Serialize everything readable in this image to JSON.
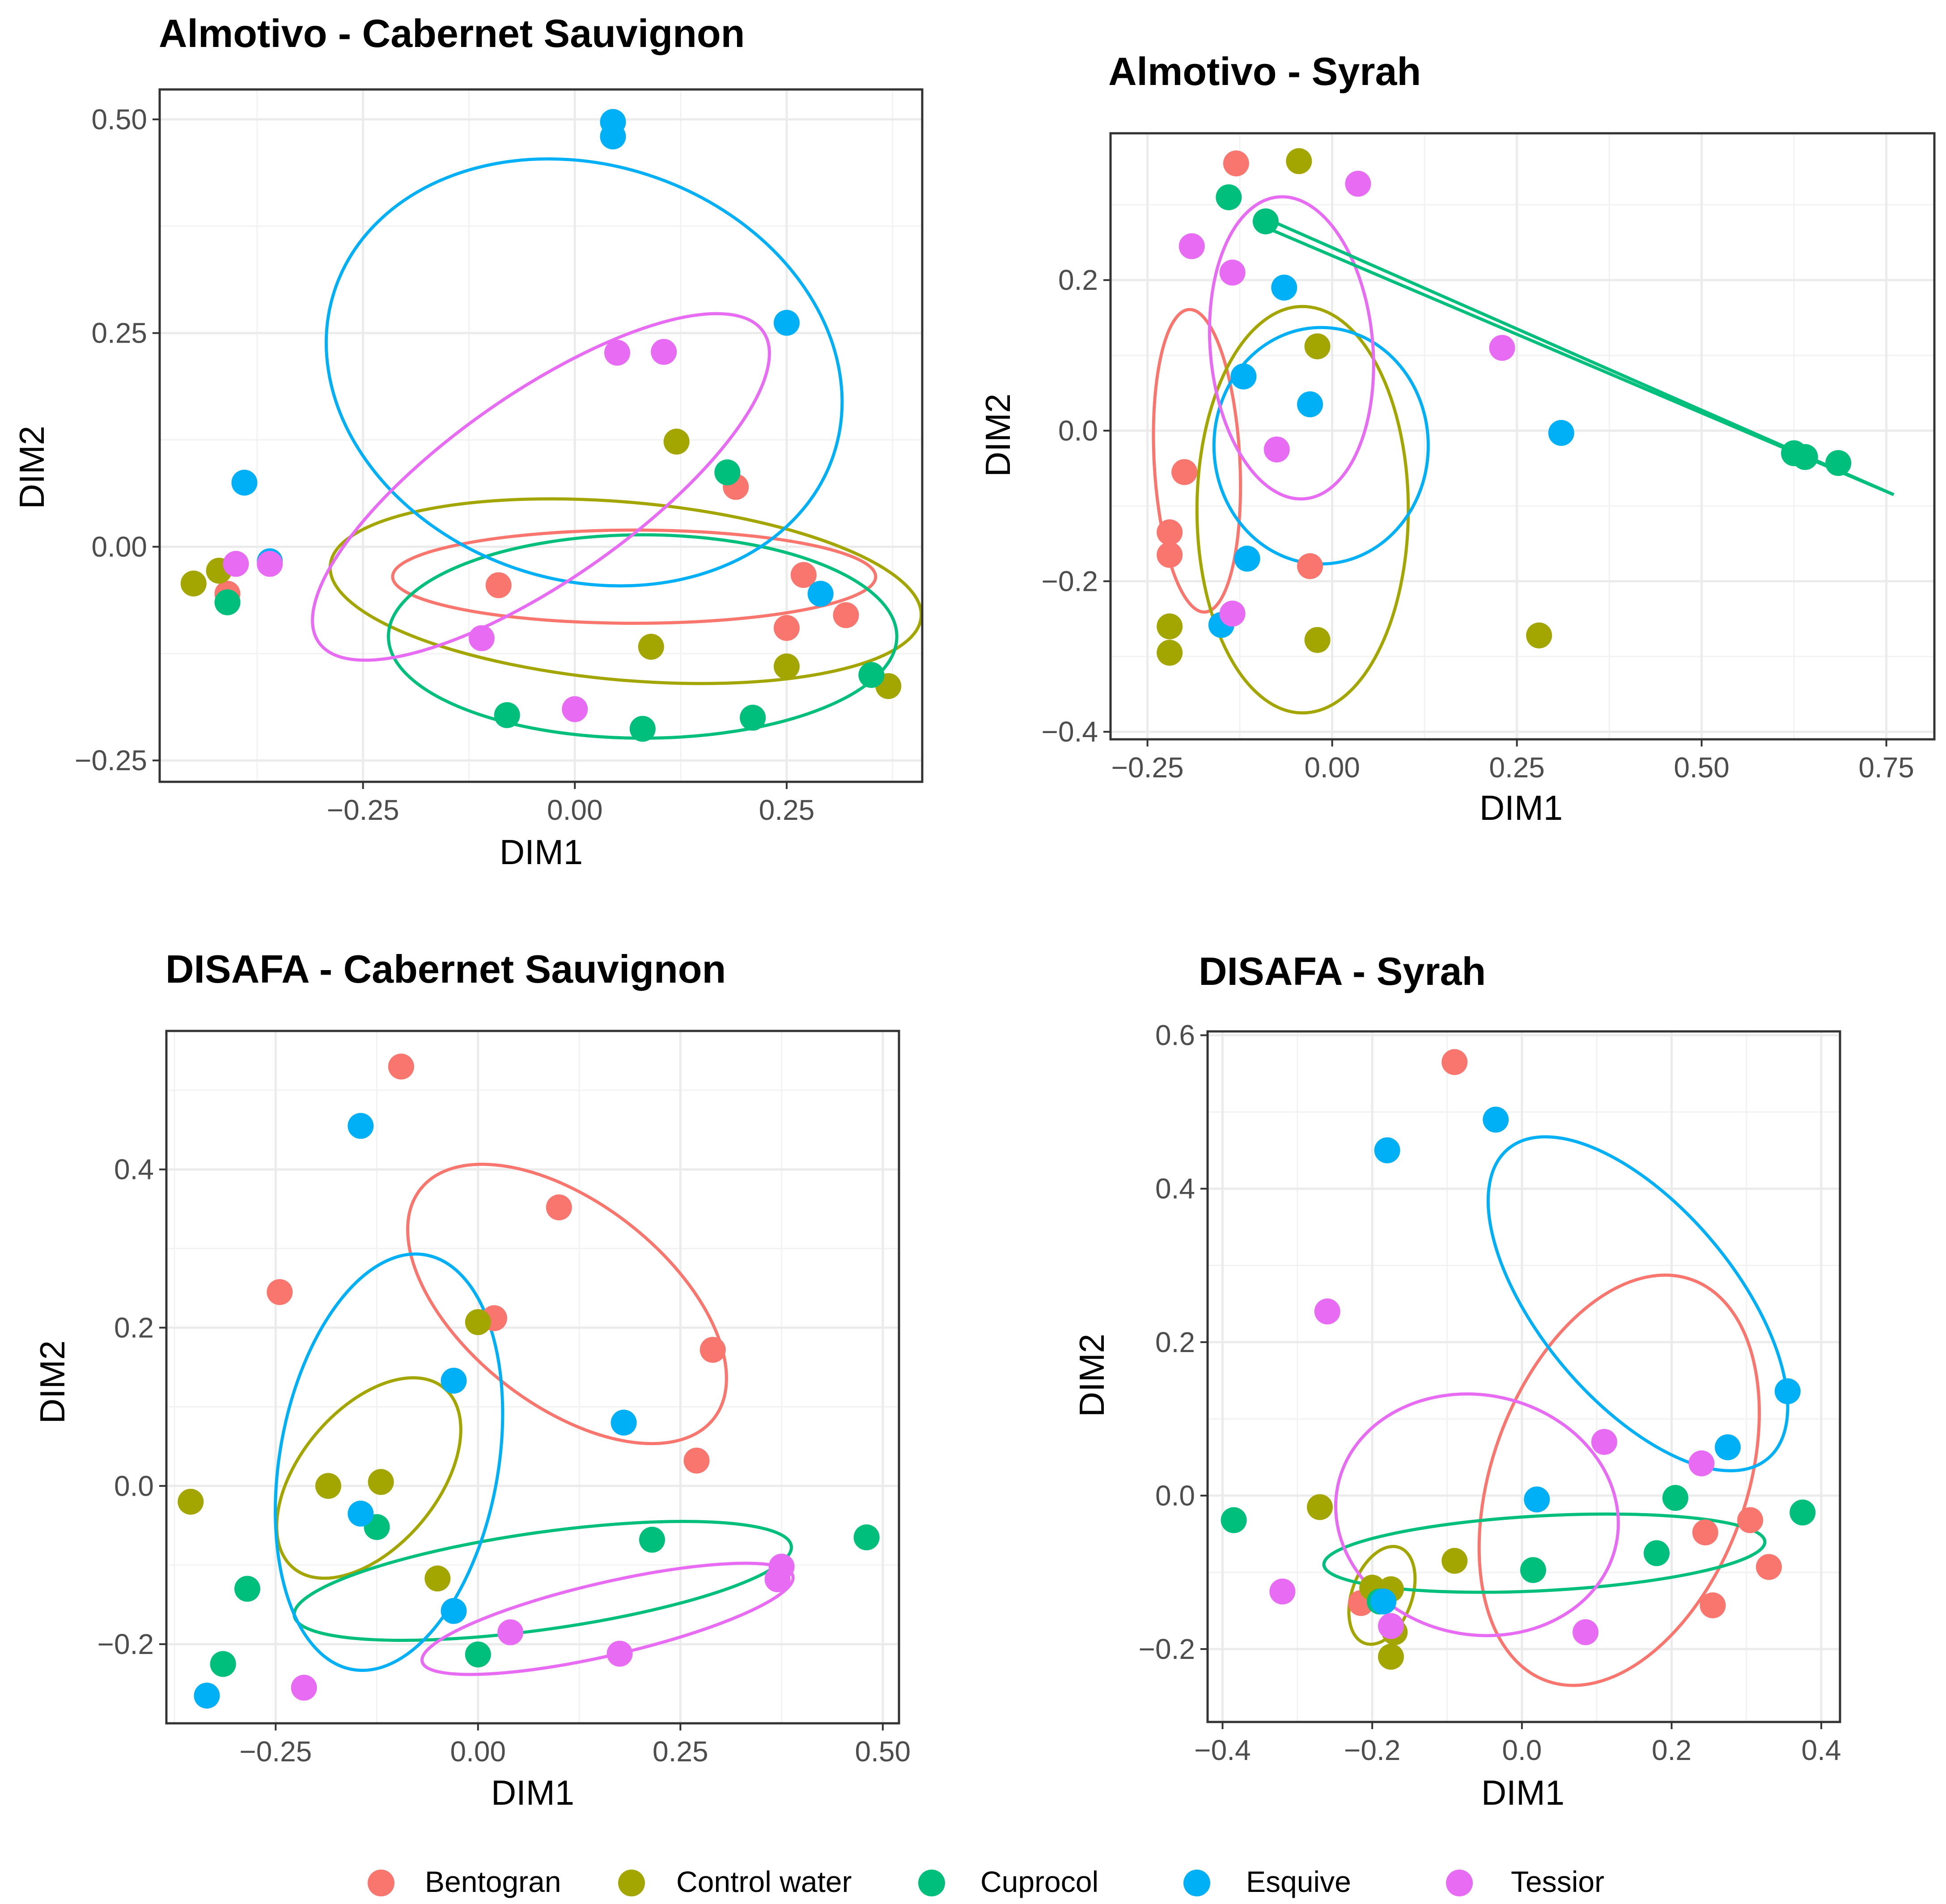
{
  "figure": {
    "series_colors": {
      "Bentogran": "#F8766D",
      "Control water": "#A3A500",
      "Cuprocol": "#00BF7D",
      "Esquive": "#00B0F6",
      "Tessior": "#E76BF3"
    }
  },
  "legend": {
    "items": [
      {
        "label": "Bentogran",
        "color": "#F8766D"
      },
      {
        "label": "Control water",
        "color": "#A3A500"
      },
      {
        "label": "Cuprocol",
        "color": "#00BF7D"
      },
      {
        "label": "Esquive",
        "color": "#00B0F6"
      },
      {
        "label": "Tessior",
        "color": "#E76BF3"
      }
    ]
  },
  "chart_data": [
    {
      "type": "scatter",
      "title": "Almotivo - Cabernet Sauvignon",
      "xlabel": "DIM1",
      "ylabel": "DIM2",
      "xlim": [
        -0.49,
        0.41
      ],
      "ylim": [
        -0.275,
        0.535
      ],
      "xticks": [
        {
          "value": -0.25,
          "label": "−0.25"
        },
        {
          "value": 0.0,
          "label": "0.00"
        },
        {
          "value": 0.25,
          "label": "0.25"
        }
      ],
      "yticks": [
        {
          "value": -0.25,
          "label": "−0.25"
        },
        {
          "value": 0.0,
          "label": "0.00"
        },
        {
          "value": 0.25,
          "label": "0.25"
        },
        {
          "value": 0.5,
          "label": "0.50"
        }
      ],
      "series": [
        {
          "name": "Bentogran",
          "points": [
            [
              -0.41,
              -0.055
            ],
            [
              -0.09,
              -0.045
            ],
            [
              0.19,
              0.07
            ],
            [
              0.25,
              -0.095
            ],
            [
              0.27,
              -0.033
            ],
            [
              0.32,
              -0.08
            ]
          ],
          "ellipse": {
            "cx": 0.07,
            "cy": -0.035,
            "rx": 0.285,
            "ry": 0.055,
            "angle_deg": 0
          }
        },
        {
          "name": "Control water",
          "points": [
            [
              -0.45,
              -0.043
            ],
            [
              -0.42,
              -0.028
            ],
            [
              0.09,
              -0.117
            ],
            [
              0.12,
              0.123
            ],
            [
              0.25,
              -0.14
            ],
            [
              0.37,
              -0.163
            ]
          ],
          "ellipse": {
            "cx": 0.06,
            "cy": -0.052,
            "rx": 0.35,
            "ry": 0.105,
            "angle_deg": -5
          }
        },
        {
          "name": "Cuprocol",
          "points": [
            [
              -0.41,
              -0.065
            ],
            [
              -0.08,
              -0.197
            ],
            [
              0.08,
              -0.213
            ],
            [
              0.18,
              0.087
            ],
            [
              0.21,
              -0.2
            ],
            [
              0.35,
              -0.15
            ]
          ],
          "ellipse": {
            "cx": 0.08,
            "cy": -0.105,
            "rx": 0.3,
            "ry": 0.12,
            "angle_deg": 0
          }
        },
        {
          "name": "Esquive",
          "points": [
            [
              -0.39,
              0.075
            ],
            [
              -0.36,
              -0.017
            ],
            [
              0.045,
              0.48
            ],
            [
              0.045,
              0.497
            ],
            [
              0.25,
              0.262
            ],
            [
              0.29,
              -0.055
            ]
          ],
          "ellipse": {
            "cx": 0.011,
            "cy": 0.204,
            "rx": 0.31,
            "ry": 0.245,
            "angle_deg": -18
          }
        },
        {
          "name": "Tessior",
          "points": [
            [
              -0.4,
              -0.02
            ],
            [
              -0.36,
              -0.02
            ],
            [
              -0.11,
              -0.107
            ],
            [
              0.0,
              -0.19
            ],
            [
              0.05,
              0.227
            ],
            [
              0.105,
              0.228
            ]
          ],
          "ellipse": {
            "cx": -0.04,
            "cy": 0.07,
            "rx": 0.32,
            "ry": 0.11,
            "angle_deg": 35
          }
        }
      ],
      "extra_lines": []
    },
    {
      "type": "scatter",
      "title": "Almotivo - Syrah",
      "xlabel": "DIM1",
      "ylabel": "DIM2",
      "xlim": [
        -0.3,
        0.815
      ],
      "ylim": [
        -0.41,
        0.395
      ],
      "xticks": [
        {
          "value": -0.25,
          "label": "−0.25"
        },
        {
          "value": 0.0,
          "label": "0.00"
        },
        {
          "value": 0.25,
          "label": "0.25"
        },
        {
          "value": 0.5,
          "label": "0.50"
        },
        {
          "value": 0.75,
          "label": "0.75"
        }
      ],
      "yticks": [
        {
          "value": -0.4,
          "label": "−0.4"
        },
        {
          "value": -0.2,
          "label": "−0.2"
        },
        {
          "value": 0.0,
          "label": "0.0"
        },
        {
          "value": 0.2,
          "label": "0.2"
        }
      ],
      "series": [
        {
          "name": "Bentogran",
          "points": [
            [
              -0.13,
              0.355
            ],
            [
              -0.2,
              -0.055
            ],
            [
              -0.22,
              -0.135
            ],
            [
              -0.22,
              -0.165
            ],
            [
              -0.03,
              -0.18
            ]
          ],
          "ellipse": {
            "cx": -0.183,
            "cy": -0.04,
            "rx": 0.058,
            "ry": 0.205,
            "angle_deg": 3
          }
        },
        {
          "name": "Control water",
          "points": [
            [
              -0.045,
              0.358
            ],
            [
              -0.02,
              0.112
            ],
            [
              -0.22,
              -0.26
            ],
            [
              -0.22,
              -0.295
            ],
            [
              -0.02,
              -0.278
            ],
            [
              0.28,
              -0.272
            ]
          ],
          "ellipse": {
            "cx": -0.04,
            "cy": -0.105,
            "rx": 0.143,
            "ry": 0.275,
            "angle_deg": 0
          }
        },
        {
          "name": "Cuprocol",
          "points": [
            [
              -0.14,
              0.31
            ],
            [
              -0.09,
              0.278
            ],
            [
              0.625,
              -0.03
            ],
            [
              0.64,
              -0.035
            ],
            [
              0.685,
              -0.043
            ]
          ],
          "ellipse": null
        },
        {
          "name": "Esquive",
          "points": [
            [
              -0.065,
              0.19
            ],
            [
              -0.12,
              0.072
            ],
            [
              -0.03,
              0.035
            ],
            [
              0.31,
              -0.003
            ],
            [
              -0.115,
              -0.17
            ],
            [
              -0.15,
              -0.258
            ]
          ],
          "ellipse": {
            "cx": -0.015,
            "cy": -0.02,
            "rx": 0.145,
            "ry": 0.16,
            "angle_deg": 0
          }
        },
        {
          "name": "Tessior",
          "points": [
            [
              0.035,
              0.328
            ],
            [
              -0.19,
              0.245
            ],
            [
              -0.135,
              0.21
            ],
            [
              0.23,
              0.11
            ],
            [
              -0.075,
              -0.025
            ],
            [
              -0.135,
              -0.243
            ]
          ],
          "ellipse": {
            "cx": -0.055,
            "cy": 0.11,
            "rx": 0.11,
            "ry": 0.205,
            "angle_deg": 5
          }
        }
      ],
      "extra_lines": [
        {
          "series": "Cuprocol",
          "points": [
            [
              -0.09,
              0.282
            ],
            [
              0.76,
              -0.085
            ]
          ]
        },
        {
          "series": "Cuprocol",
          "points": [
            [
              -0.09,
              0.27
            ],
            [
              0.76,
              -0.085
            ]
          ]
        }
      ]
    },
    {
      "type": "scatter",
      "title": "DISAFA - Cabernet Sauvignon",
      "xlabel": "DIM1",
      "ylabel": "DIM2",
      "xlim": [
        -0.385,
        0.52
      ],
      "ylim": [
        -0.3,
        0.575
      ],
      "xticks": [
        {
          "value": -0.25,
          "label": "−0.25"
        },
        {
          "value": 0.0,
          "label": "0.00"
        },
        {
          "value": 0.25,
          "label": "0.25"
        },
        {
          "value": 0.5,
          "label": "0.50"
        }
      ],
      "yticks": [
        {
          "value": -0.2,
          "label": "−0.2"
        },
        {
          "value": 0.0,
          "label": "0.0"
        },
        {
          "value": 0.2,
          "label": "0.2"
        },
        {
          "value": 0.4,
          "label": "0.4"
        }
      ],
      "series": [
        {
          "name": "Bentogran",
          "points": [
            [
              -0.095,
              0.53
            ],
            [
              0.1,
              0.352
            ],
            [
              -0.245,
              0.245
            ],
            [
              0.02,
              0.212
            ],
            [
              0.29,
              0.172
            ],
            [
              0.27,
              0.032
            ]
          ],
          "ellipse": {
            "cx": 0.11,
            "cy": 0.23,
            "rx": 0.23,
            "ry": 0.125,
            "angle_deg": -38
          }
        },
        {
          "name": "Control water",
          "points": [
            [
              -0.355,
              -0.02
            ],
            [
              -0.185,
              0.0
            ],
            [
              -0.12,
              0.005
            ],
            [
              -0.05,
              -0.117
            ],
            [
              0.0,
              0.207
            ]
          ],
          "ellipse": {
            "cx": -0.135,
            "cy": 0.01,
            "rx": 0.145,
            "ry": 0.085,
            "angle_deg": 50
          }
        },
        {
          "name": "Cuprocol",
          "points": [
            [
              -0.285,
              -0.13
            ],
            [
              -0.315,
              -0.225
            ],
            [
              -0.125,
              -0.052
            ],
            [
              0.0,
              -0.213
            ],
            [
              0.215,
              -0.068
            ],
            [
              0.48,
              -0.065
            ]
          ],
          "ellipse": {
            "cx": 0.08,
            "cy": -0.12,
            "rx": 0.31,
            "ry": 0.06,
            "angle_deg": 8
          }
        },
        {
          "name": "Esquive",
          "points": [
            [
              -0.145,
              0.455
            ],
            [
              -0.03,
              0.133
            ],
            [
              0.18,
              0.08
            ],
            [
              -0.145,
              -0.035
            ],
            [
              -0.03,
              -0.158
            ],
            [
              -0.335,
              -0.265
            ]
          ],
          "ellipse": {
            "cx": -0.11,
            "cy": 0.03,
            "rx": 0.26,
            "ry": 0.135,
            "angle_deg": 80
          }
        },
        {
          "name": "Tessior",
          "points": [
            [
              -0.215,
              -0.255
            ],
            [
              0.04,
              -0.185
            ],
            [
              0.175,
              -0.212
            ],
            [
              0.37,
              -0.118
            ],
            [
              0.375,
              -0.102
            ]
          ],
          "ellipse": {
            "cx": 0.16,
            "cy": -0.168,
            "rx": 0.235,
            "ry": 0.045,
            "angle_deg": 13
          }
        }
      ],
      "extra_lines": []
    },
    {
      "type": "scatter",
      "title": "DISAFA - Syrah",
      "xlabel": "DIM1",
      "ylabel": "DIM2",
      "xlim": [
        -0.42,
        0.425
      ],
      "ylim": [
        -0.295,
        0.605
      ],
      "xticks": [
        {
          "value": -0.4,
          "label": "−0.4"
        },
        {
          "value": -0.2,
          "label": "−0.2"
        },
        {
          "value": 0.0,
          "label": "0.0"
        },
        {
          "value": 0.2,
          "label": "0.2"
        },
        {
          "value": 0.4,
          "label": "0.4"
        }
      ],
      "yticks": [
        {
          "value": -0.2,
          "label": "−0.2"
        },
        {
          "value": 0.0,
          "label": "0.0"
        },
        {
          "value": 0.2,
          "label": "0.2"
        },
        {
          "value": 0.4,
          "label": "0.4"
        },
        {
          "value": 0.6,
          "label": "0.6"
        }
      ],
      "series": [
        {
          "name": "Bentogran",
          "points": [
            [
              -0.09,
              0.565
            ],
            [
              0.245,
              -0.048
            ],
            [
              0.305,
              -0.032
            ],
            [
              0.33,
              -0.093
            ],
            [
              0.255,
              -0.143
            ],
            [
              -0.215,
              -0.14
            ]
          ],
          "ellipse": {
            "cx": 0.13,
            "cy": 0.02,
            "rx": 0.285,
            "ry": 0.17,
            "angle_deg": 70
          }
        },
        {
          "name": "Control water",
          "points": [
            [
              -0.27,
              -0.015
            ],
            [
              -0.09,
              -0.085
            ],
            [
              -0.2,
              -0.12
            ],
            [
              -0.175,
              -0.122
            ],
            [
              -0.17,
              -0.178
            ],
            [
              -0.175,
              -0.21
            ]
          ],
          "ellipse": {
            "cx": -0.187,
            "cy": -0.13,
            "rx": 0.068,
            "ry": 0.04,
            "angle_deg": 70
          }
        },
        {
          "name": "Cuprocol",
          "points": [
            [
              -0.385,
              -0.032
            ],
            [
              0.205,
              -0.003
            ],
            [
              0.375,
              -0.022
            ],
            [
              0.18,
              -0.075
            ],
            [
              0.015,
              -0.097
            ],
            [
              -0.19,
              -0.138
            ]
          ],
          "ellipse": {
            "cx": 0.03,
            "cy": -0.075,
            "rx": 0.295,
            "ry": 0.05,
            "angle_deg": 3
          }
        },
        {
          "name": "Esquive",
          "points": [
            [
              -0.035,
              0.49
            ],
            [
              -0.18,
              0.45
            ],
            [
              0.355,
              0.136
            ],
            [
              0.275,
              0.063
            ],
            [
              0.02,
              -0.005
            ],
            [
              -0.185,
              -0.138
            ]
          ],
          "ellipse": {
            "cx": 0.155,
            "cy": 0.25,
            "rx": 0.27,
            "ry": 0.13,
            "angle_deg": -50
          }
        },
        {
          "name": "Tessior",
          "points": [
            [
              -0.26,
              0.24
            ],
            [
              0.11,
              0.07
            ],
            [
              0.24,
              0.042
            ],
            [
              -0.32,
              -0.125
            ],
            [
              0.085,
              -0.178
            ],
            [
              -0.175,
              -0.17
            ]
          ],
          "ellipse": {
            "cx": -0.06,
            "cy": -0.025,
            "rx": 0.19,
            "ry": 0.16,
            "angle_deg": -12
          }
        }
      ],
      "extra_lines": []
    }
  ]
}
